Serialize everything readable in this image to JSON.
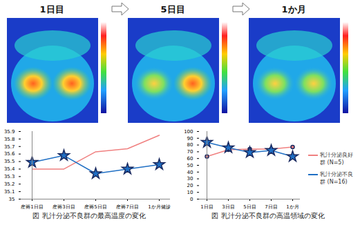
{
  "panels": {
    "labels": [
      "1日目",
      "5日目",
      "1か月"
    ]
  },
  "chart_data": [
    {
      "type": "line",
      "title": "図 乳汁分泌不良群の最高温度の変化",
      "categories": [
        "産褥1日目",
        "産褥3日目",
        "産褥5日目",
        "産褥7日目",
        "1か月健診"
      ],
      "series": [
        {
          "name": "乳汁分泌良好群",
          "color": "#f08080",
          "marker": "none",
          "values": [
            35.4,
            35.4,
            35.63,
            35.67,
            35.85
          ]
        },
        {
          "name": "乳汁分泌不良群",
          "color": "#1f6fc4",
          "marker": "star",
          "values": [
            35.49,
            35.58,
            35.34,
            35.4,
            35.46
          ]
        }
      ],
      "ylim": [
        35,
        35.9
      ],
      "yticks": [
        35,
        35.1,
        35.2,
        35.3,
        35.4,
        35.5,
        35.6,
        35.7,
        35.8,
        35.9
      ],
      "grid": false,
      "legend": "none"
    },
    {
      "type": "line",
      "title": "図 乳汁分泌不良群の高温領域の変化",
      "categories": [
        "1日目",
        "3日目",
        "5日目",
        "7日目",
        "1か月"
      ],
      "series": [
        {
          "name": "乳汁分泌良好群 (N=5)",
          "color": "#f08080",
          "marker": "circle",
          "values": [
            63,
            73,
            74,
            74,
            77
          ]
        },
        {
          "name": "乳汁分泌不良群 (N=16)",
          "color": "#1f6fc4",
          "marker": "star",
          "values": [
            84,
            76,
            69,
            72,
            63
          ]
        }
      ],
      "ylim": [
        0,
        100
      ],
      "yticks": [
        0,
        10,
        20,
        30,
        40,
        50,
        60,
        70,
        80,
        90,
        100
      ],
      "grid": false,
      "legend": "right"
    }
  ]
}
